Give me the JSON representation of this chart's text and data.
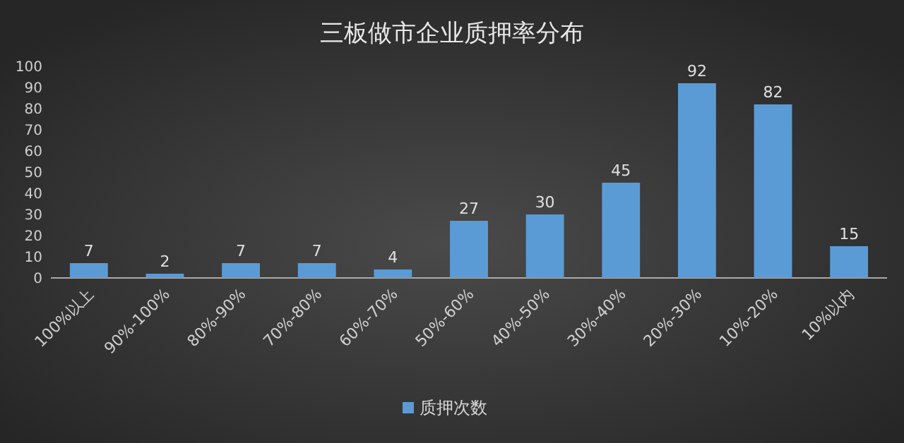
{
  "chart_data": {
    "type": "bar",
    "title": "三板做市企业质押率分布",
    "categories": [
      "100%以上",
      "90%-100%",
      "80%-90%",
      "70%-80%",
      "60%-70%",
      "50%-60%",
      "40%-50%",
      "30%-40%",
      "20%-30%",
      "10%-20%",
      "10%以内"
    ],
    "series": [
      {
        "name": "质押次数",
        "color": "#5b9bd5",
        "values": [
          7,
          2,
          7,
          7,
          4,
          27,
          30,
          45,
          92,
          82,
          15
        ]
      }
    ],
    "ylim": [
      0,
      100
    ],
    "yticks": [
      0,
      10,
      20,
      30,
      40,
      50,
      60,
      70,
      80,
      90,
      100
    ],
    "data_labels": true,
    "legend": "bottom"
  }
}
